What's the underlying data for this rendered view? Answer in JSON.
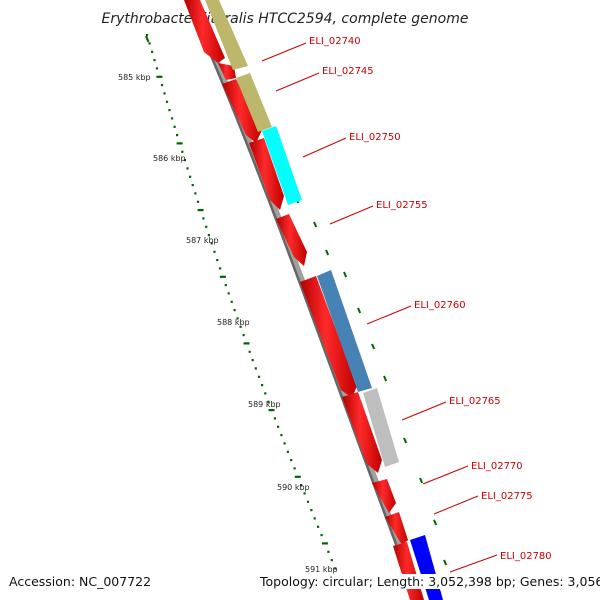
{
  "title": "Erythrobacter litoralis HTCC2594, complete genome",
  "ticks": [
    "585 kbp",
    "586 kbp",
    "587 kbp",
    "588 kbp",
    "589 kbp",
    "590 kbp",
    "591 kbp"
  ],
  "genes": [
    {
      "label": "ELI_02740"
    },
    {
      "label": "ELI_02745"
    },
    {
      "label": "ELI_02750"
    },
    {
      "label": "ELI_02755"
    },
    {
      "label": "ELI_02760"
    },
    {
      "label": "ELI_02765"
    },
    {
      "label": "ELI_02770"
    },
    {
      "label": "ELI_02775"
    },
    {
      "label": "ELI_02780"
    }
  ],
  "footer": {
    "accession": "Accession: NC_007722",
    "summary": "Topology: circular; Length: 3,052,398 bp; Genes: 3,056"
  },
  "colors": {
    "forward_strand": "#ff0000",
    "reverse_strand": "#ff0000",
    "feature_khaki": "#bdb76b",
    "feature_cyan": "#00ffff",
    "feature_steelblue": "#4682b4",
    "feature_gray": "#bebebe",
    "feature_blue": "#0000ff",
    "backbone": "#808080",
    "tick": "#006400",
    "label": "#cc0000"
  }
}
